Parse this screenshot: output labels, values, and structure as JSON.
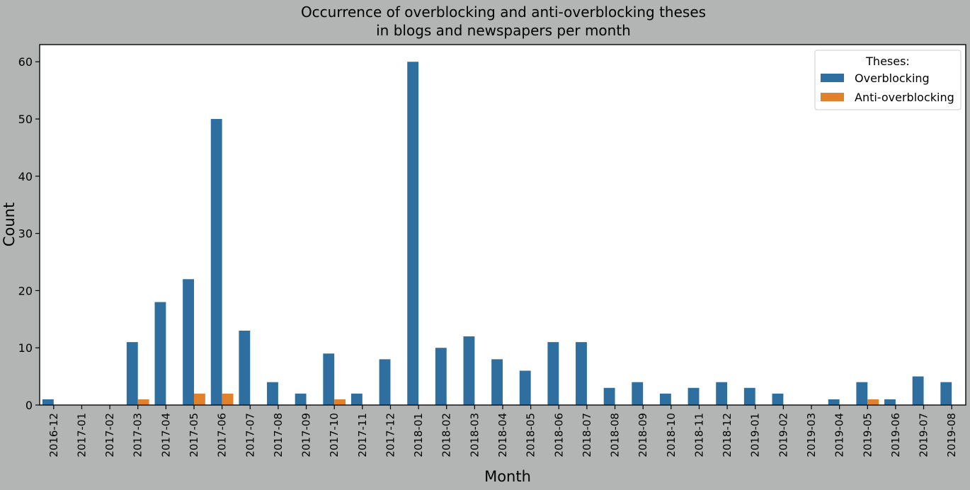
{
  "chart_data": {
    "type": "bar",
    "title": [
      "Occurrence of overblocking and anti-overblocking theses",
      "in blogs and newspapers per month"
    ],
    "xlabel": "Month",
    "ylabel": "Count",
    "ylim": [
      0,
      63
    ],
    "yticks": [
      0,
      10,
      20,
      30,
      40,
      50,
      60
    ],
    "grid": false,
    "legend": {
      "title": "Theses:",
      "placement": "top-right"
    },
    "categories": [
      "2016-12",
      "2017-01",
      "2017-02",
      "2017-03",
      "2017-04",
      "2017-05",
      "2017-06",
      "2017-07",
      "2017-08",
      "2017-09",
      "2017-10",
      "2017-11",
      "2017-12",
      "2018-01",
      "2018-02",
      "2018-03",
      "2018-04",
      "2018-05",
      "2018-06",
      "2018-07",
      "2018-08",
      "2018-09",
      "2018-10",
      "2018-11",
      "2018-12",
      "2019-01",
      "2019-02",
      "2019-03",
      "2019-04",
      "2019-05",
      "2019-06",
      "2019-07",
      "2019-08"
    ],
    "series": [
      {
        "name": "Overblocking",
        "color": "#2f6f9f",
        "values": [
          1,
          0,
          0,
          11,
          18,
          22,
          50,
          13,
          4,
          2,
          9,
          2,
          8,
          60,
          10,
          12,
          8,
          6,
          11,
          11,
          3,
          4,
          2,
          3,
          4,
          3,
          2,
          0,
          1,
          4,
          1,
          5,
          4
        ]
      },
      {
        "name": "Anti-overblocking",
        "color": "#e1812c",
        "values": [
          0,
          0,
          0,
          1,
          0,
          2,
          2,
          0,
          0,
          0,
          1,
          0,
          0,
          0,
          0,
          0,
          0,
          0,
          0,
          0,
          0,
          0,
          0,
          0,
          0,
          0,
          0,
          0,
          0,
          1,
          0,
          0,
          0
        ]
      }
    ]
  }
}
